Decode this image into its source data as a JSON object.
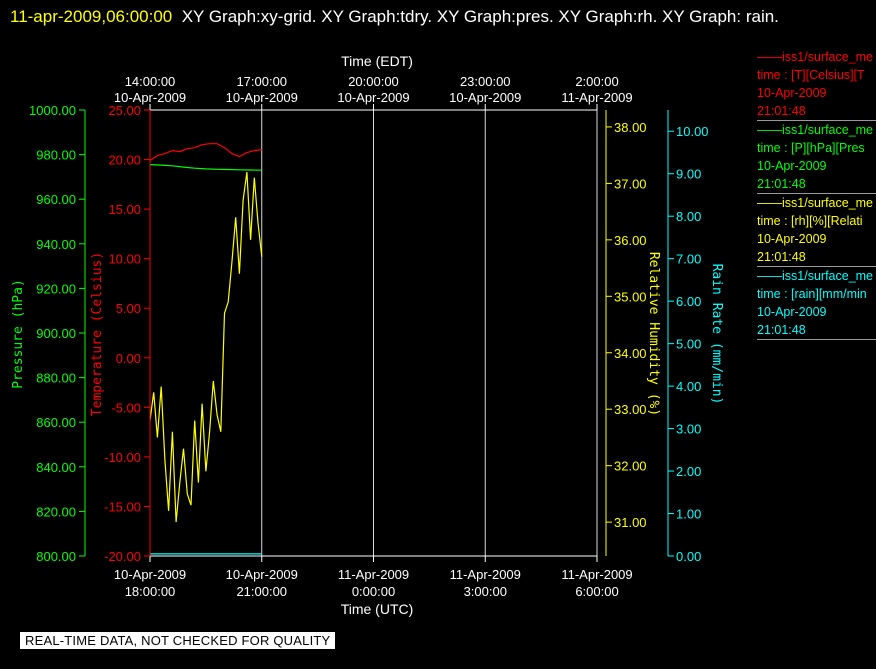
{
  "header": {
    "timestamp": "11-apr-2009,06:00:00",
    "titles": "XY Graph:xy-grid.  XY Graph:tdry.  XY Graph:pres.  XY Graph:rh.  XY Graph: rain."
  },
  "banner": "REAL-TIME DATA, NOT CHECKED FOR QUALITY",
  "legend": [
    {
      "line1": "——iss1/surface_me",
      "line2": "time : [T][Celsius][T",
      "date": "10-Apr-2009",
      "time": "21:01:48",
      "color": "#ff0000"
    },
    {
      "line1": "——iss1/surface_me",
      "line2": "time : [P][hPa][Pres",
      "date": "10-Apr-2009",
      "time": "21:01:48",
      "color": "#00ff00"
    },
    {
      "line1": "——iss1/surface_me",
      "line2": "time : [rh][%][Relati",
      "date": "10-Apr-2009",
      "time": "21:01:48",
      "color": "#ffff00"
    },
    {
      "line1": "——iss1/surface_me",
      "line2": "time : [rain][mm/min",
      "date": "10-Apr-2009",
      "time": "21:01:48",
      "color": "#00ffff"
    }
  ],
  "chart_data": {
    "type": "line",
    "top_axis": {
      "label": "Time (EDT)",
      "ticks": [
        {
          "time": "14:00:00",
          "date": "10-Apr-2009"
        },
        {
          "time": "17:00:00",
          "date": "10-Apr-2009"
        },
        {
          "time": "20:00:00",
          "date": "10-Apr-2009"
        },
        {
          "time": "23:00:00",
          "date": "10-Apr-2009"
        },
        {
          "time": "2:00:00",
          "date": "11-Apr-2009"
        }
      ]
    },
    "bottom_axis": {
      "label": "Time (UTC)",
      "ticks": [
        {
          "date": "10-Apr-2009",
          "time": "18:00:00"
        },
        {
          "date": "10-Apr-2009",
          "time": "21:00:00"
        },
        {
          "date": "11-Apr-2009",
          "time": "0:00:00"
        },
        {
          "date": "11-Apr-2009",
          "time": "3:00:00"
        },
        {
          "date": "11-Apr-2009",
          "time": "6:00:00"
        }
      ]
    },
    "xlim_utc_hours": [
      18.0,
      30.0
    ],
    "grid": true,
    "axes": {
      "pressure": {
        "label": "Pressure (hPa)",
        "color": "#00ff00",
        "ylim": [
          800,
          1000
        ],
        "ticks": [
          "800.00",
          "820.00",
          "840.00",
          "860.00",
          "880.00",
          "900.00",
          "920.00",
          "940.00",
          "960.00",
          "980.00",
          "1000.00"
        ]
      },
      "temperature": {
        "label": "Temperature (Celsius)",
        "color": "#ff0000",
        "ylim": [
          -20,
          25
        ],
        "ticks": [
          "-20.00",
          "-15.00",
          "-10.00",
          "-5.00",
          "0.00",
          "5.00",
          "10.00",
          "15.00",
          "20.00",
          "25.00"
        ]
      },
      "rh": {
        "label": "Relative Humidity (%)",
        "color": "#ffff00",
        "ylim": [
          30.4,
          38.3
        ],
        "ticks": [
          "31.00",
          "32.00",
          "33.00",
          "34.00",
          "35.00",
          "36.00",
          "37.00",
          "38.00"
        ]
      },
      "rain": {
        "label": "Rain Rate (mm/min)",
        "color": "#00ffff",
        "ylim": [
          0,
          10.5
        ],
        "ticks": [
          "0.00",
          "1.00",
          "2.00",
          "3.00",
          "4.00",
          "5.00",
          "6.00",
          "7.00",
          "8.00",
          "9.00",
          "10.00"
        ]
      }
    },
    "series": [
      {
        "axis": "temperature",
        "color": "#ff0000",
        "x": [
          18.0,
          18.2,
          18.4,
          18.6,
          18.8,
          19.0,
          19.2,
          19.4,
          19.6,
          19.8,
          20.0,
          20.2,
          20.4,
          20.6,
          20.8,
          21.0
        ],
        "y": [
          19.9,
          20.4,
          20.6,
          20.9,
          20.8,
          21.1,
          21.2,
          21.5,
          21.6,
          21.6,
          21.2,
          20.6,
          20.3,
          20.7,
          20.9,
          21.0
        ]
      },
      {
        "axis": "pressure",
        "color": "#00ff00",
        "x": [
          18.0,
          18.3,
          18.6,
          18.9,
          19.2,
          19.5,
          19.8,
          20.1,
          20.4,
          20.7,
          21.0
        ],
        "y": [
          975.5,
          975.3,
          975.0,
          974.4,
          973.9,
          973.6,
          973.4,
          973.3,
          973.2,
          973.1,
          973.0
        ]
      },
      {
        "axis": "rh",
        "color": "#ffff00",
        "x": [
          18.0,
          18.1,
          18.2,
          18.3,
          18.4,
          18.5,
          18.6,
          18.7,
          18.8,
          18.9,
          19.0,
          19.1,
          19.2,
          19.3,
          19.4,
          19.5,
          19.6,
          19.7,
          19.8,
          19.9,
          20.0,
          20.1,
          20.2,
          20.3,
          20.4,
          20.5,
          20.6,
          20.7,
          20.8,
          20.9,
          21.0
        ],
        "y": [
          32.8,
          33.3,
          32.5,
          33.4,
          32.1,
          31.2,
          32.6,
          31.0,
          31.7,
          32.3,
          31.5,
          31.3,
          32.8,
          31.7,
          33.1,
          31.9,
          32.6,
          33.5,
          32.9,
          32.6,
          34.7,
          34.9,
          35.6,
          36.4,
          35.4,
          36.7,
          37.2,
          36.0,
          37.1,
          36.3,
          35.7
        ]
      },
      {
        "axis": "rain",
        "color": "#00ffff",
        "x": [
          18.0,
          21.0
        ],
        "y": [
          0.05,
          0.05
        ]
      }
    ]
  }
}
